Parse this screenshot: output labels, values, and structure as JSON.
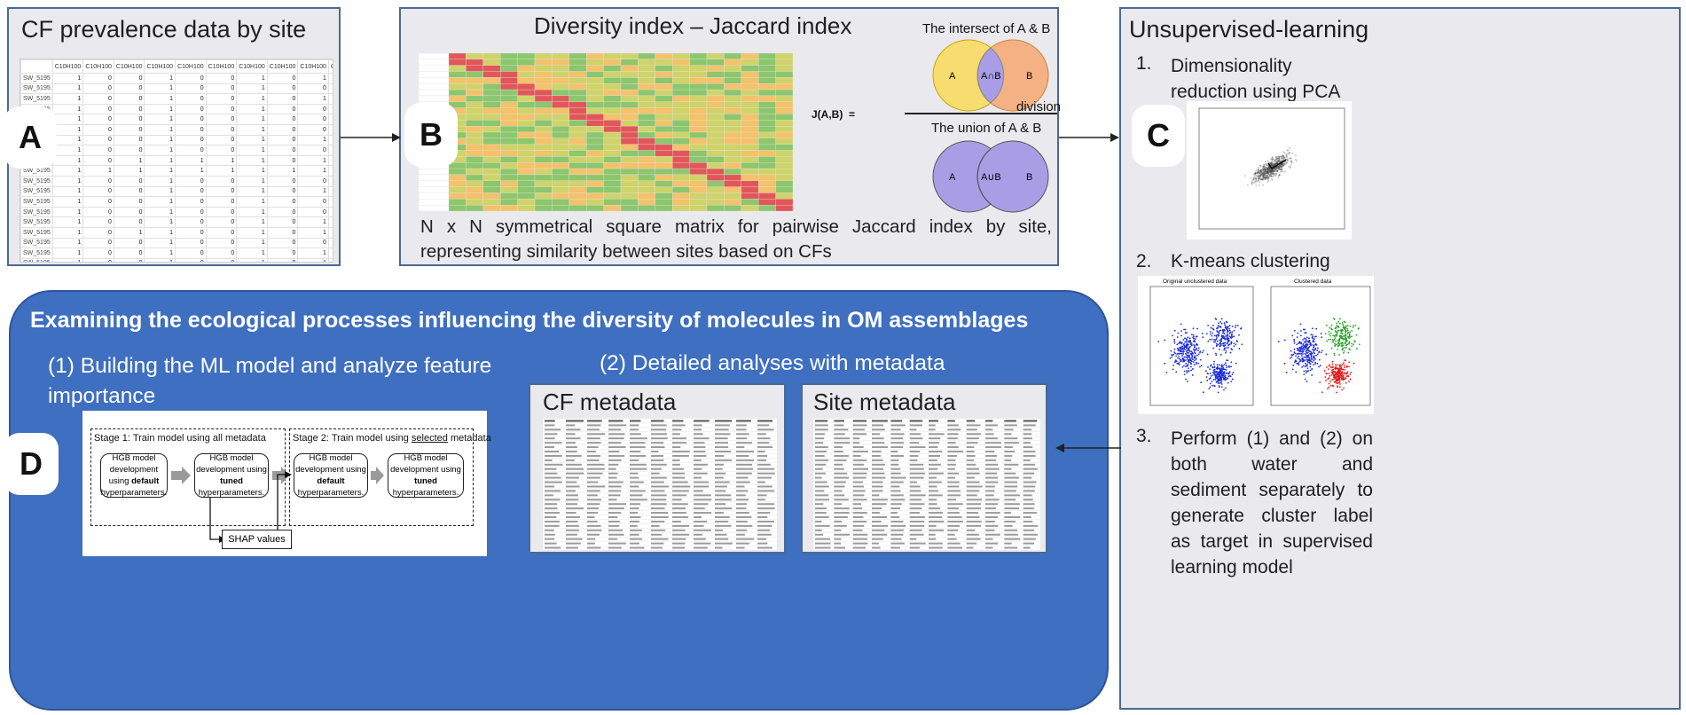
{
  "panel_a": {
    "title": "CF prevalence data by site",
    "letter": "A",
    "header_cells": [
      "",
      "C10H100",
      "C10H100",
      "C10H100",
      "C10H100",
      "C10H100",
      "C10H100",
      "C10H100",
      "C10H100",
      "C10H100",
      "C10H100",
      "C10H100",
      "C10H100",
      "C10H10-C1"
    ],
    "row_label": "SW_5195",
    "rows": [
      [
        "1",
        "0",
        "0",
        "1",
        "0",
        "0",
        "1",
        "0",
        "1",
        "0",
        "1",
        "0"
      ],
      [
        "1",
        "0",
        "0",
        "1",
        "0",
        "0",
        "1",
        "0",
        "0",
        "0",
        "1",
        "0"
      ],
      [
        "1",
        "0",
        "0",
        "1",
        "0",
        "0",
        "1",
        "0",
        "1",
        "0",
        "1",
        "0"
      ],
      [
        "1",
        "0",
        "0",
        "1",
        "0",
        "0",
        "1",
        "0",
        "0",
        "0",
        "1",
        "0"
      ],
      [
        "1",
        "0",
        "0",
        "1",
        "0",
        "0",
        "1",
        "0",
        "0",
        "0",
        "0",
        "1"
      ],
      [
        "1",
        "0",
        "0",
        "1",
        "0",
        "0",
        "1",
        "0",
        "0",
        "0",
        "1",
        "0"
      ],
      [
        "1",
        "0",
        "0",
        "1",
        "0",
        "0",
        "1",
        "0",
        "1",
        "0",
        "1",
        "0"
      ],
      [
        "1",
        "0",
        "0",
        "1",
        "0",
        "0",
        "1",
        "0",
        "0",
        "1",
        "0",
        "0"
      ],
      [
        "1",
        "0",
        "1",
        "1",
        "1",
        "1",
        "1",
        "0",
        "1",
        "1",
        "1",
        "0"
      ],
      [
        "1",
        "1",
        "1",
        "1",
        "1",
        "1",
        "1",
        "1",
        "1",
        "1",
        "1",
        "1"
      ],
      [
        "1",
        "0",
        "0",
        "1",
        "0",
        "0",
        "1",
        "0",
        "0",
        "0",
        "0",
        "1"
      ],
      [
        "1",
        "0",
        "0",
        "1",
        "0",
        "0",
        "1",
        "0",
        "1",
        "0",
        "1",
        "0"
      ],
      [
        "1",
        "0",
        "0",
        "1",
        "0",
        "0",
        "1",
        "0",
        "0",
        "0",
        "1",
        "0"
      ],
      [
        "1",
        "0",
        "0",
        "1",
        "0",
        "0",
        "1",
        "0",
        "0",
        "0",
        "0",
        "0"
      ],
      [
        "1",
        "0",
        "0",
        "1",
        "0",
        "0",
        "1",
        "0",
        "1",
        "0",
        "1",
        "0"
      ],
      [
        "1",
        "0",
        "1",
        "1",
        "0",
        "0",
        "1",
        "0",
        "1",
        "0",
        "0",
        "1"
      ],
      [
        "1",
        "0",
        "0",
        "1",
        "0",
        "0",
        "1",
        "0",
        "0",
        "0",
        "1",
        "0"
      ],
      [
        "1",
        "0",
        "0",
        "1",
        "0",
        "0",
        "1",
        "0",
        "1",
        "0",
        "1",
        "0"
      ],
      [
        "1",
        "0",
        "0",
        "1",
        "0",
        "0",
        "1",
        "0",
        "1",
        "0",
        "1",
        "0"
      ],
      [
        "1",
        "1",
        "1",
        "1",
        "1",
        "1",
        "1",
        "1",
        "1",
        "1",
        "1",
        "0"
      ],
      [
        "1",
        "0",
        "0",
        "1",
        "0",
        "0",
        "1",
        "0",
        "0",
        "0",
        "1",
        "0"
      ],
      [
        "1",
        "0",
        "0",
        "1",
        "0",
        "0",
        "1",
        "0",
        "1",
        "0",
        "1",
        "0"
      ]
    ]
  },
  "panel_b": {
    "title": "Diversity index – Jaccard index",
    "letter": "B",
    "intersect_label": "The intersect of A & B",
    "union_label": "The union of A & B",
    "division_label": "division",
    "formula": "J(A,B)  =",
    "circle_a": "A",
    "circle_b": "B",
    "intersect_symbol": "A∩B",
    "union_symbol": "A∪B",
    "description": "N x N symmetrical square matrix for pairwise Jaccard index by site, representing similarity between sites based on CFs"
  },
  "panel_c": {
    "title": "Unsupervised-learning",
    "letter": "C",
    "step1_num": "1.",
    "step1": "Dimensionality reduction using PCA",
    "step2_num": "2.",
    "step2": "K-means clustering",
    "kmeans_left_title": "Original unclustered data",
    "kmeans_right_title": "Clustered data",
    "step3_num": "3.",
    "step3": "Perform (1) and (2) on both water and sediment separately to generate cluster label as target in supervised learning model"
  },
  "panel_d": {
    "letter": "D",
    "heading": "Examining the ecological processes influencing the diversity of molecules in OM assemblages",
    "sub1": "(1) Building the ML model and analyze feature importance",
    "sub2": "(2) Detailed analyses with metadata",
    "stage1_title": "Stage 1: Train model using all metadata",
    "stage2_title": "Stage 2: Train model using selected metadata",
    "box_default": "HGB model development using default hyperparameters.",
    "box_tuned": "HGB model development using tuned hyperparameters.",
    "shap": "SHAP values",
    "cf_meta_title": "CF metadata",
    "site_meta_title": "Site metadata"
  },
  "colors": {
    "panel_bg": "#e9e9ee",
    "panel_border": "#4a6a92",
    "blue_panel": "#3f6fc0",
    "venn_yellow": "#f7dc6f",
    "venn_orange": "#f4b183",
    "venn_purple": "#a99ee6",
    "cluster_blue": "#1f2fd6",
    "cluster_green": "#2ca02c",
    "cluster_red": "#e31a1c"
  }
}
